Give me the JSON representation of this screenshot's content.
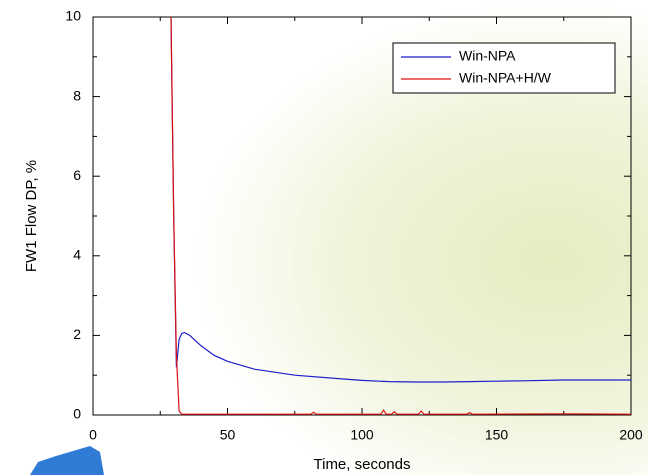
{
  "chart_data": {
    "type": "line",
    "x_label": "Time, seconds",
    "y_label": "FW1 Flow DP, %",
    "xlim": [
      0,
      200
    ],
    "ylim": [
      0,
      10
    ],
    "xticks": [
      0,
      50,
      100,
      150,
      200
    ],
    "yticks": [
      0,
      2,
      4,
      6,
      8,
      10
    ],
    "legend": "upper right",
    "series": [
      {
        "name": "Win-NPA",
        "color": "#1f1fcc",
        "x": [
          29,
          30,
          31,
          32,
          33,
          34,
          36,
          40,
          45,
          50,
          60,
          75,
          90,
          100,
          110,
          120,
          130,
          140,
          150,
          160,
          175,
          190,
          200
        ],
        "values": [
          10,
          5,
          1.2,
          1.9,
          2.05,
          2.07,
          2.0,
          1.75,
          1.5,
          1.35,
          1.15,
          1.0,
          0.92,
          0.87,
          0.84,
          0.83,
          0.83,
          0.84,
          0.85,
          0.86,
          0.88,
          0.88,
          0.88
        ]
      },
      {
        "name": "Win-NPA+H/W",
        "color": "#e01010",
        "x": [
          29,
          30,
          31,
          32,
          33,
          50,
          81,
          82,
          83,
          107,
          108,
          109,
          111,
          112,
          113,
          121,
          122,
          123,
          139,
          140,
          141,
          175,
          200
        ],
        "values": [
          10,
          5,
          1.5,
          0.1,
          0.02,
          0.02,
          0.02,
          0.07,
          0.02,
          0.02,
          0.12,
          0.02,
          0.02,
          0.08,
          0.02,
          0.02,
          0.1,
          0.02,
          0.02,
          0.06,
          0.02,
          0.03,
          0.02
        ]
      }
    ]
  }
}
